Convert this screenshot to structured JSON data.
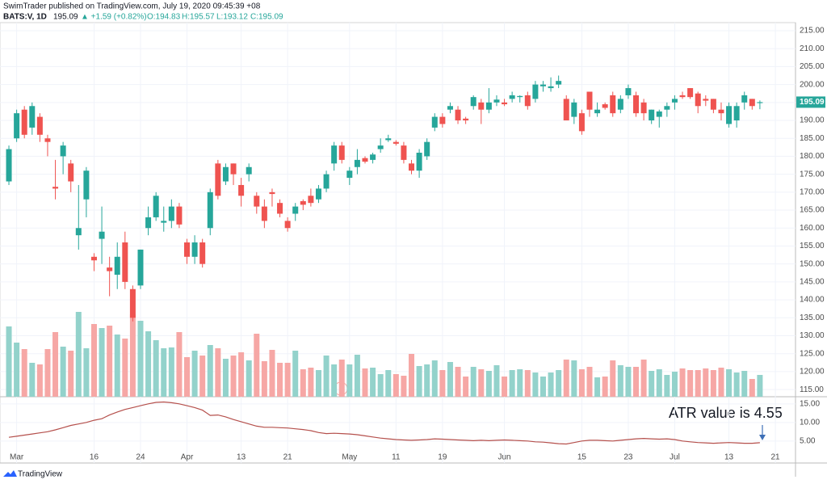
{
  "header": {
    "published": "SwimTrader published on TradingView.com, July 19, 2020 09:45:39 +08",
    "symbol": "BATS:V, 1D",
    "price": "195.09",
    "change": "▲ +1.59 (+0.82%)",
    "ohlc": [
      "O:194.83",
      "H:195.57",
      "L:193.12",
      "C:195.09"
    ],
    "footer": "TradingView",
    "earnings": "E"
  },
  "chart_data": [
    {
      "type": "candlestick",
      "up_color": "#26a69a",
      "down_color": "#ef5350",
      "volume_up_color": "#93d2cb",
      "volume_down_color": "#f6a7a5",
      "open": [
        173,
        185,
        193,
        188,
        191,
        185,
        171.5,
        180,
        178,
        158,
        168,
        152,
        157,
        149,
        147,
        156,
        143,
        144,
        160,
        163,
        161.5,
        162,
        166,
        156,
        152,
        156,
        160,
        178,
        173,
        178,
        172,
        175,
        169,
        166,
        170,
        167,
        162,
        164,
        167.5,
        169,
        168,
        171,
        178,
        183,
        174,
        177,
        179.5,
        179,
        182,
        184.5,
        184,
        183,
        178,
        176,
        180,
        188,
        191,
        193,
        193,
        190.5,
        194,
        195,
        193,
        195,
        195,
        196,
        196.5,
        197,
        196,
        199.5,
        199,
        200,
        196,
        191,
        192,
        198,
        192,
        194.5,
        197,
        193,
        197,
        197,
        195,
        190,
        191,
        193,
        195,
        197,
        199,
        197.5,
        196,
        196,
        193,
        189,
        190,
        195,
        196,
        194.83
      ],
      "high": [
        183,
        193,
        194,
        195,
        192,
        186,
        179,
        184,
        179,
        172,
        177,
        153,
        166,
        152,
        156,
        159,
        144,
        154,
        166,
        170,
        166,
        168,
        167,
        157,
        158,
        157,
        171,
        179,
        178,
        178,
        174,
        178,
        170,
        168,
        171,
        168,
        163,
        167,
        168,
        171,
        172,
        176,
        184,
        184,
        177,
        182,
        180,
        181,
        185,
        186,
        184.5,
        184,
        179,
        182,
        185,
        192,
        192,
        195,
        194,
        191,
        197,
        196,
        199,
        197,
        196,
        198,
        197,
        198,
        201,
        201,
        202,
        202.5,
        197,
        196,
        193,
        198,
        195,
        195,
        198,
        197,
        200,
        198,
        196,
        193,
        193,
        195,
        197,
        198,
        199,
        198,
        197,
        196,
        195,
        195,
        195,
        198,
        196,
        195.57
      ],
      "low": [
        172,
        184,
        185,
        186,
        184,
        180,
        168,
        175,
        170,
        154,
        163,
        148,
        150,
        141,
        143,
        143,
        134,
        143,
        158,
        162,
        159,
        160,
        160,
        150,
        150,
        149,
        158,
        168,
        172,
        172,
        166,
        173,
        164,
        160,
        166,
        163,
        159,
        162,
        165,
        166,
        167,
        170,
        176,
        178,
        172,
        175,
        178,
        178,
        181,
        184,
        183,
        178,
        175,
        174,
        179,
        187,
        188,
        192,
        189,
        189,
        193,
        189,
        192,
        194,
        194,
        195,
        195,
        193,
        195,
        198,
        198,
        199,
        190,
        189,
        186,
        191,
        191,
        193,
        191,
        192,
        196,
        191,
        190,
        189,
        188,
        191,
        193,
        196,
        196,
        192,
        194,
        192,
        190,
        188,
        188,
        193,
        193,
        193.12
      ],
      "close": [
        182,
        192,
        186,
        194,
        186,
        184,
        171,
        183,
        173,
        160,
        176,
        151,
        159,
        148,
        152,
        145,
        135,
        154,
        163,
        169,
        162,
        166,
        161,
        152,
        156,
        150,
        170,
        169,
        177,
        175,
        169,
        177,
        166,
        162,
        169.5,
        164,
        160,
        166,
        166.5,
        167,
        171,
        175,
        183,
        179,
        176,
        179,
        178.5,
        180.5,
        183,
        185,
        183.5,
        179,
        176,
        181,
        184,
        191,
        189,
        194,
        190,
        190,
        196.5,
        193,
        195,
        195.8,
        194.5,
        197,
        196.8,
        194,
        200,
        200,
        199.5,
        201,
        190,
        195,
        187,
        193,
        193,
        193.5,
        192,
        196,
        199,
        192,
        192,
        193,
        192.5,
        194,
        196,
        196.5,
        196.5,
        194,
        195.5,
        193,
        192,
        194,
        194,
        197,
        194,
        195.09
      ],
      "volume": [
        87,
        67,
        59,
        42,
        40,
        59,
        80,
        62,
        57,
        105,
        60,
        90,
        85,
        88,
        77,
        72,
        102,
        94,
        81,
        70,
        60,
        61,
        80,
        49,
        57,
        51,
        64,
        60,
        47,
        51,
        55,
        45,
        78,
        44,
        58,
        42,
        42,
        57,
        34,
        36,
        33,
        51,
        40,
        46,
        40,
        52,
        35,
        36,
        28,
        33,
        28,
        26,
        53,
        38,
        40,
        45,
        33,
        43,
        37,
        25,
        37,
        34,
        32,
        39,
        25,
        33,
        34,
        33,
        30,
        25,
        30,
        33,
        46,
        45,
        34,
        37,
        24,
        25,
        45,
        39,
        37,
        37,
        46,
        32,
        34,
        27,
        31,
        35,
        33,
        33,
        35,
        33,
        36,
        34,
        30,
        32,
        22,
        27
      ],
      "xlim": [
        -1.15,
        101.6
      ],
      "xticks": [
        {
          "value": 1,
          "label": "Mar"
        },
        {
          "value": 11,
          "label": "16"
        },
        {
          "value": 17,
          "label": "24"
        },
        {
          "value": 23,
          "label": "Apr"
        },
        {
          "value": 30,
          "label": "13"
        },
        {
          "value": 36,
          "label": "21"
        },
        {
          "value": 44,
          "label": "May"
        },
        {
          "value": 50,
          "label": "11"
        },
        {
          "value": 56,
          "label": "19"
        },
        {
          "value": 64,
          "label": "Jun"
        },
        {
          "value": 74,
          "label": "15"
        },
        {
          "value": 80,
          "label": "23"
        },
        {
          "value": 86,
          "label": "Jul"
        },
        {
          "value": 93,
          "label": "13"
        },
        {
          "value": 99,
          "label": "21"
        }
      ],
      "ylim": [
        113,
        217.25
      ],
      "yticks": [
        {
          "value": 115,
          "label": "115.00"
        },
        {
          "value": 120,
          "label": "120.00"
        },
        {
          "value": 125,
          "label": "125.00"
        },
        {
          "value": 130,
          "label": "130.00"
        },
        {
          "value": 135,
          "label": "135.00"
        },
        {
          "value": 140,
          "label": "140.00"
        },
        {
          "value": 145,
          "label": "145.00"
        },
        {
          "value": 150,
          "label": "150.00"
        },
        {
          "value": 155,
          "label": "155.00"
        },
        {
          "value": 160,
          "label": "160.00"
        },
        {
          "value": 165,
          "label": "165.00"
        },
        {
          "value": 170,
          "label": "170.00"
        },
        {
          "value": 175,
          "label": "175.00"
        },
        {
          "value": 180,
          "label": "180.00"
        },
        {
          "value": 185,
          "label": "185.00"
        },
        {
          "value": 190,
          "label": "190.00"
        },
        {
          "value": 195,
          "label": "195.00"
        },
        {
          "value": 200,
          "label": "200.00"
        },
        {
          "value": 205,
          "label": "205.00"
        },
        {
          "value": 210,
          "label": "210.00"
        },
        {
          "value": 215,
          "label": "215.00"
        }
      ],
      "last_price_label": "195.09"
    },
    {
      "type": "line",
      "color": "#b5504c",
      "annotation": "ATR value is 4.55",
      "values": [
        6.0,
        6.3,
        6.6,
        6.9,
        7.2,
        7.5,
        8.0,
        8.6,
        9.2,
        9.6,
        10.0,
        10.6,
        11.0,
        12.0,
        12.8,
        13.5,
        14.0,
        14.5,
        15.0,
        15.4,
        15.5,
        15.3,
        15.0,
        14.5,
        14.0,
        13.3,
        11.9,
        12.0,
        11.5,
        10.8,
        10.2,
        9.6,
        9.0,
        8.7,
        8.7,
        8.6,
        8.5,
        8.3,
        8.1,
        7.8,
        7.3,
        7.0,
        7.1,
        7.0,
        6.9,
        6.7,
        6.4,
        6.1,
        5.8,
        5.6,
        5.4,
        5.3,
        5.2,
        5.3,
        5.4,
        5.6,
        5.5,
        5.4,
        5.3,
        5.2,
        5.1,
        5.2,
        5.1,
        5.2,
        5.3,
        5.2,
        5.1,
        5.0,
        4.8,
        4.7,
        4.5,
        4.3,
        4.2,
        4.6,
        5.0,
        5.2,
        5.2,
        5.1,
        5.0,
        5.2,
        5.4,
        5.6,
        5.7,
        5.6,
        5.5,
        5.6,
        5.4,
        5.0,
        4.8,
        4.6,
        4.5,
        4.4,
        4.5,
        4.6,
        4.5,
        4.4,
        4.4,
        4.55
      ],
      "ylim": [
        -0.9,
        16.7
      ],
      "yticks": [
        {
          "value": 5,
          "label": "5.00"
        },
        {
          "value": 10,
          "label": "10.00"
        },
        {
          "value": 15,
          "label": "15.00"
        }
      ]
    }
  ]
}
